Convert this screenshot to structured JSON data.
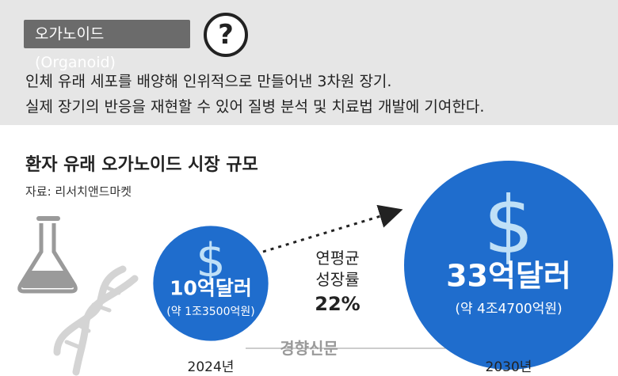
{
  "header": {
    "tag": "오가노이드(Organoid)",
    "help_symbol": "?",
    "line1": "인체 유래 세포를 배양해 인위적으로 만들어낸 3차원 장기.",
    "line2": "실제 장기의 반응을 재현할 수 있어 질병 분석 및 치료법 개발에 기여한다."
  },
  "chart_data": {
    "type": "bubble",
    "title": "환자 유래 오가노이드 시장 규모",
    "source": "자료: 리서치앤드마켓",
    "unit": "억달러",
    "points": [
      {
        "year": "2024년",
        "value": 10,
        "label": "10억달러",
        "sublabel": "(약 1조3500억원)",
        "symbol": "$"
      },
      {
        "year": "2030년",
        "value": 33,
        "label": "33억달러",
        "sublabel": "(약 4조4700억원)",
        "symbol": "$"
      }
    ],
    "growth": {
      "line1": "연평균",
      "line2": "성장률",
      "value": "22%"
    },
    "colors": {
      "bubble": "#1f6dcd",
      "symbol": "#bfe0f7",
      "band": "#e6e6e6"
    }
  },
  "watermark": "경향신문",
  "icons": [
    "flask-icon",
    "dna-icon"
  ]
}
